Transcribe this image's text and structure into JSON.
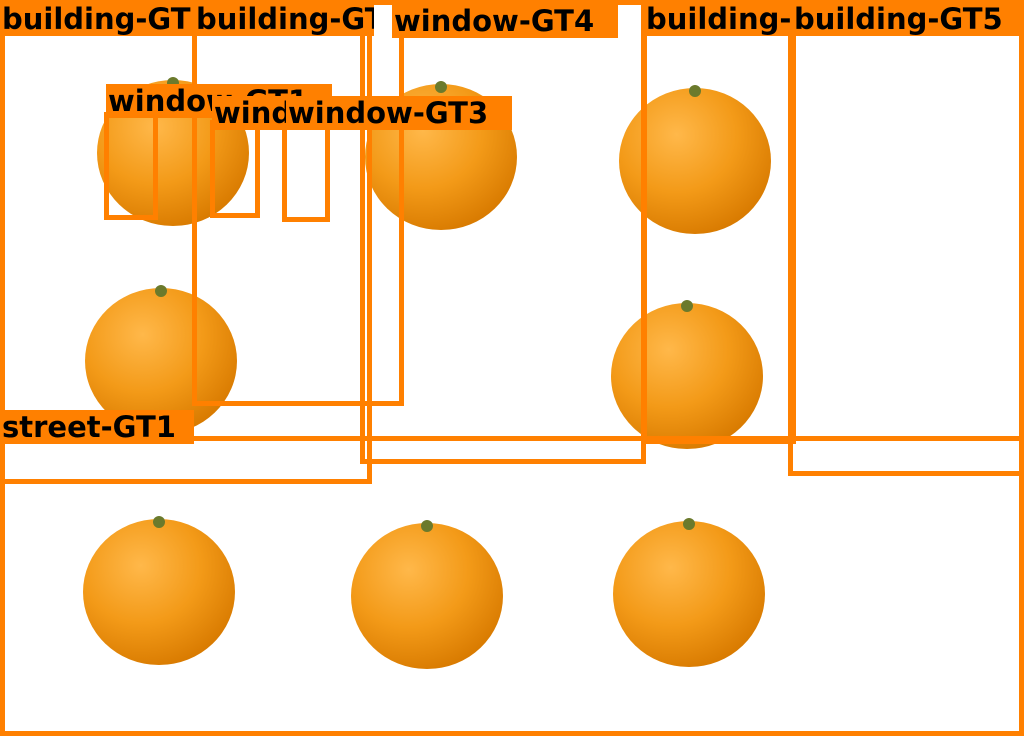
{
  "colors": {
    "annotation": "#ff8000",
    "label_text": "#000000",
    "background": "#ffffff"
  },
  "objects": {
    "icon": "orange-icon",
    "count": 9
  },
  "annotations": [
    {
      "id": "building-1",
      "label": "building-GT1"
    },
    {
      "id": "building-2",
      "label": "building-GT2"
    },
    {
      "id": "window-4",
      "label": "window-GT4"
    },
    {
      "id": "building-3",
      "label": "building-GT3"
    },
    {
      "id": "building-5",
      "label": "building-GT5"
    },
    {
      "id": "window-1",
      "label": "window-GT1"
    },
    {
      "id": "window-2",
      "label": "window-GT2"
    },
    {
      "id": "window-3",
      "label": "window-GT3"
    },
    {
      "id": "street-1",
      "label": "street-GT1"
    }
  ]
}
